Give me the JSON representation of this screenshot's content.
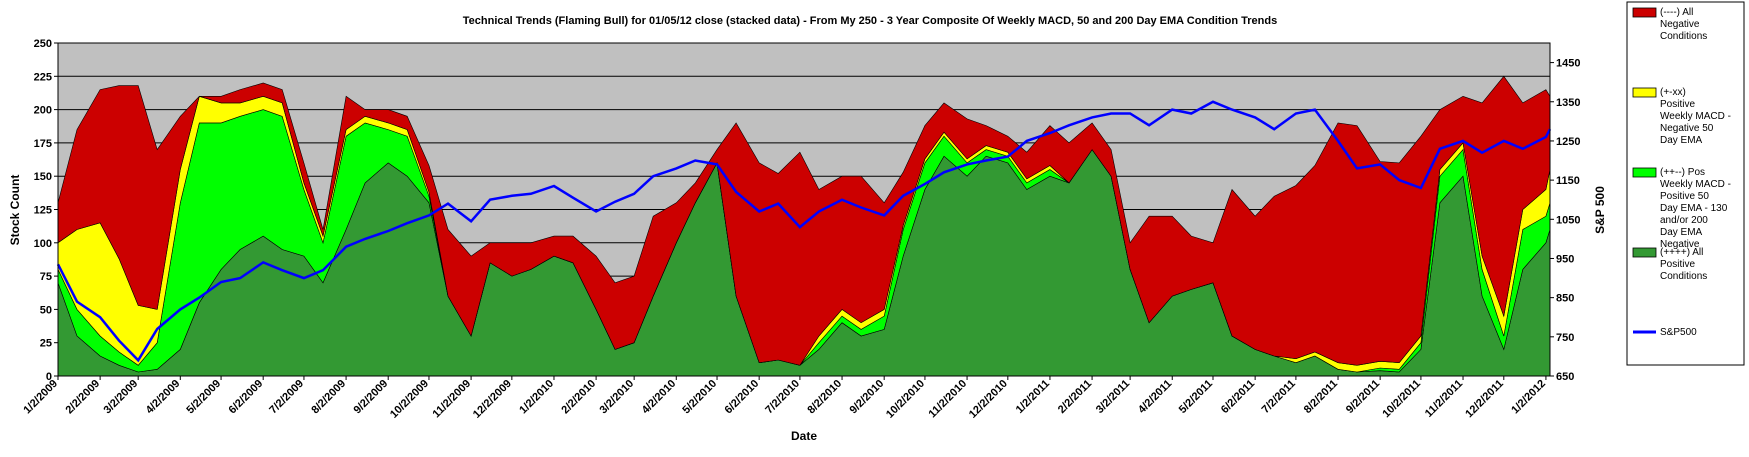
{
  "chart_data": {
    "type": "area",
    "title": "Technical Trends (Flaming Bull) for 01/05/12 close (stacked data) - From My 250 - 3 Year Composite Of Weekly MACD, 50 and 200 Day EMA Condition Trends",
    "xlabel": "Date",
    "ylabel": "Stock Count",
    "y2label": "S&P 500",
    "ylim": [
      0,
      250
    ],
    "y2lim": [
      650,
      1500
    ],
    "yticks": [
      0,
      25,
      50,
      75,
      100,
      125,
      150,
      175,
      200,
      225,
      250
    ],
    "y2ticks": [
      650,
      750,
      850,
      950,
      1050,
      1150,
      1250,
      1350,
      1450
    ],
    "xticks": [
      "1/2/2009",
      "2/2/2009",
      "3/2/2009",
      "4/2/2009",
      "5/2/2009",
      "6/2/2009",
      "7/2/2009",
      "8/2/2009",
      "9/2/2009",
      "10/2/2009",
      "11/2/2009",
      "12/2/2009",
      "1/2/2010",
      "2/2/2010",
      "3/2/2010",
      "4/2/2010",
      "5/2/2010",
      "6/2/2010",
      "7/2/2010",
      "8/2/2010",
      "9/2/2010",
      "10/2/2010",
      "11/2/2010",
      "12/2/2010",
      "1/2/2011",
      "2/2/2011",
      "3/2/2011",
      "4/2/2011",
      "5/2/2011",
      "6/2/2011",
      "7/2/2011",
      "8/2/2011",
      "9/2/2011",
      "10/2/2011",
      "11/2/2011",
      "12/2/2011",
      "1/2/2012"
    ],
    "grid": true,
    "legend_position": "right",
    "x_dates": [
      "2009-01-02",
      "2009-01-16",
      "2009-02-02",
      "2009-02-16",
      "2009-03-02",
      "2009-03-16",
      "2009-04-02",
      "2009-04-16",
      "2009-05-02",
      "2009-05-16",
      "2009-06-02",
      "2009-06-16",
      "2009-07-02",
      "2009-07-16",
      "2009-08-02",
      "2009-08-16",
      "2009-09-02",
      "2009-09-16",
      "2009-10-02",
      "2009-10-16",
      "2009-11-02",
      "2009-11-16",
      "2009-12-02",
      "2009-12-16",
      "2010-01-02",
      "2010-01-16",
      "2010-02-02",
      "2010-02-16",
      "2010-03-02",
      "2010-03-16",
      "2010-04-02",
      "2010-04-16",
      "2010-05-02",
      "2010-05-16",
      "2010-06-02",
      "2010-06-16",
      "2010-07-02",
      "2010-07-16",
      "2010-08-02",
      "2010-08-16",
      "2010-09-02",
      "2010-09-16",
      "2010-10-02",
      "2010-10-16",
      "2010-11-02",
      "2010-11-16",
      "2010-12-02",
      "2010-12-16",
      "2011-01-02",
      "2011-01-16",
      "2011-02-02",
      "2011-02-16",
      "2011-03-02",
      "2011-03-16",
      "2011-04-02",
      "2011-04-16",
      "2011-05-02",
      "2011-05-16",
      "2011-06-02",
      "2011-06-16",
      "2011-07-02",
      "2011-07-16",
      "2011-08-02",
      "2011-08-16",
      "2011-09-02",
      "2011-09-16",
      "2011-10-02",
      "2011-10-16",
      "2011-11-02",
      "2011-11-16",
      "2011-12-02",
      "2011-12-16",
      "2012-01-02",
      "2012-01-05"
    ],
    "series": [
      {
        "name": "(++++) All Positive Conditions",
        "color": "#339933",
        "values": [
          70,
          30,
          15,
          8,
          3,
          5,
          20,
          55,
          80,
          95,
          105,
          95,
          90,
          70,
          110,
          145,
          160,
          150,
          130,
          60,
          30,
          85,
          75,
          80,
          90,
          85,
          50,
          20,
          25,
          60,
          100,
          130,
          160,
          60,
          10,
          12,
          8,
          20,
          40,
          30,
          35,
          90,
          140,
          165,
          150,
          165,
          160,
          140,
          150,
          145,
          170,
          150,
          80,
          40,
          60,
          65,
          70,
          30,
          20,
          15,
          10,
          15,
          5,
          3,
          4,
          3,
          20,
          130,
          150,
          60,
          20,
          80,
          100,
          110
        ]
      },
      {
        "name": "(++--) Pos Weekly MACD - Positive 50 Day EMA - 130 and/or 200 Day EMA Negative",
        "color": "#00ff00",
        "values": [
          10,
          20,
          15,
          10,
          5,
          20,
          110,
          135,
          110,
          100,
          95,
          100,
          50,
          30,
          70,
          45,
          25,
          30,
          5,
          0,
          0,
          0,
          0,
          0,
          0,
          0,
          0,
          0,
          0,
          0,
          0,
          0,
          0,
          0,
          0,
          0,
          0,
          5,
          5,
          5,
          10,
          20,
          20,
          15,
          10,
          5,
          5,
          5,
          5,
          0,
          0,
          0,
          0,
          0,
          0,
          0,
          0,
          0,
          0,
          0,
          0,
          0,
          0,
          0,
          2,
          2,
          5,
          20,
          20,
          20,
          10,
          30,
          20,
          20
        ]
      },
      {
        "name": "(+-xx) Positive Weekly MACD - Negative 50 Day EMA",
        "color": "#ffff00",
        "values": [
          20,
          60,
          85,
          70,
          45,
          25,
          25,
          20,
          15,
          10,
          10,
          10,
          5,
          5,
          5,
          5,
          5,
          5,
          3,
          0,
          0,
          0,
          0,
          0,
          0,
          0,
          0,
          0,
          0,
          0,
          0,
          0,
          0,
          0,
          0,
          0,
          0,
          5,
          5,
          5,
          5,
          3,
          3,
          3,
          3,
          3,
          3,
          3,
          3,
          0,
          0,
          0,
          0,
          0,
          0,
          0,
          0,
          0,
          0,
          0,
          3,
          3,
          5,
          5,
          5,
          5,
          5,
          5,
          5,
          10,
          15,
          15,
          20,
          25
        ]
      },
      {
        "name": "(----) All Negative Conditions",
        "color": "#cc0000",
        "values": [
          30,
          75,
          100,
          130,
          165,
          120,
          40,
          0,
          5,
          10,
          10,
          10,
          15,
          5,
          25,
          5,
          10,
          10,
          20,
          50,
          60,
          15,
          25,
          20,
          15,
          20,
          40,
          50,
          50,
          60,
          30,
          15,
          10,
          130,
          150,
          140,
          160,
          110,
          100,
          110,
          80,
          40,
          25,
          22,
          30,
          15,
          12,
          20,
          30,
          30,
          20,
          20,
          20,
          80,
          60,
          40,
          30,
          110,
          100,
          120,
          130,
          140,
          180,
          180,
          150,
          150,
          150,
          45,
          35,
          115,
          180,
          80,
          75,
          55
        ]
      },
      {
        "name": "S&P500",
        "color": "#0000ff",
        "axis": "right",
        "values": [
          935,
          840,
          800,
          740,
          690,
          770,
          820,
          850,
          890,
          900,
          940,
          920,
          900,
          920,
          980,
          1000,
          1020,
          1040,
          1060,
          1090,
          1045,
          1100,
          1110,
          1115,
          1135,
          1105,
          1070,
          1095,
          1115,
          1160,
          1180,
          1200,
          1190,
          1120,
          1070,
          1090,
          1030,
          1070,
          1100,
          1080,
          1060,
          1110,
          1140,
          1170,
          1190,
          1200,
          1210,
          1250,
          1270,
          1290,
          1310,
          1320,
          1320,
          1290,
          1330,
          1320,
          1350,
          1330,
          1310,
          1280,
          1320,
          1330,
          1250,
          1180,
          1190,
          1150,
          1130,
          1230,
          1250,
          1220,
          1250,
          1230,
          1260,
          1280
        ]
      }
    ]
  }
}
